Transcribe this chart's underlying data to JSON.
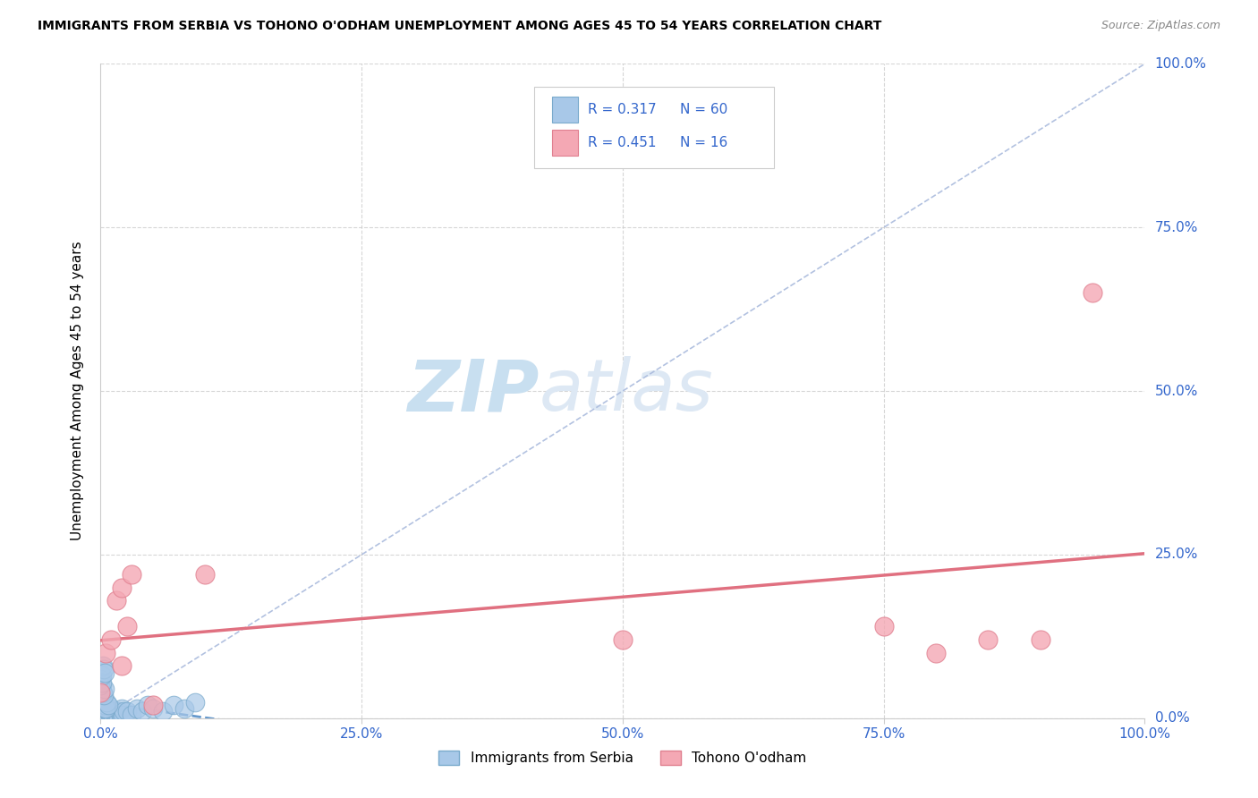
{
  "title": "IMMIGRANTS FROM SERBIA VS TOHONO O'ODHAM UNEMPLOYMENT AMONG AGES 45 TO 54 YEARS CORRELATION CHART",
  "source": "Source: ZipAtlas.com",
  "ylabel": "Unemployment Among Ages 45 to 54 years",
  "xlim": [
    0,
    1
  ],
  "ylim": [
    0,
    1
  ],
  "xticks": [
    0.0,
    0.25,
    0.5,
    0.75,
    1.0
  ],
  "yticks": [
    0.0,
    0.25,
    0.5,
    0.75,
    1.0
  ],
  "xticklabels": [
    "0.0%",
    "25.0%",
    "50.0%",
    "75.0%",
    "100.0%"
  ],
  "yticklabels": [
    "0.0%",
    "25.0%",
    "50.0%",
    "75.0%",
    "100.0%"
  ],
  "serbia_color": "#a8c8e8",
  "tohono_color": "#f4a8b4",
  "serbia_edge_color": "#7aaacc",
  "tohono_edge_color": "#e08090",
  "serbia_R": 0.317,
  "serbia_N": 60,
  "tohono_R": 0.451,
  "tohono_N": 16,
  "legend_label_serbia": "Immigrants from Serbia",
  "legend_label_tohono": "Tohono O'odham",
  "r_color": "#3366cc",
  "n_color": "#3366cc",
  "watermark_zip": "ZIP",
  "watermark_atlas": "atlas",
  "watermark_color": "#c8dff0",
  "grid_color": "#cccccc",
  "diag_color": "#aabbdd",
  "serbia_reg_color": "#6699cc",
  "tohono_reg_color": "#e07080",
  "serbia_x": [
    0.0,
    0.0,
    0.0,
    0.0,
    0.0,
    0.002,
    0.003,
    0.004,
    0.005,
    0.005,
    0.006,
    0.007,
    0.008,
    0.009,
    0.01,
    0.01,
    0.011,
    0.012,
    0.013,
    0.014,
    0.015,
    0.015,
    0.016,
    0.017,
    0.018,
    0.019,
    0.02,
    0.02,
    0.021,
    0.022,
    0.0,
    0.001,
    0.002,
    0.003,
    0.004,
    0.005,
    0.006,
    0.007,
    0.001,
    0.002,
    0.003,
    0.004,
    0.0,
    0.0,
    0.0,
    0.001,
    0.001,
    0.002,
    0.003,
    0.004,
    0.025,
    0.03,
    0.035,
    0.04,
    0.045,
    0.05,
    0.06,
    0.07,
    0.08,
    0.09
  ],
  "serbia_y": [
    0.0,
    0.0,
    0.005,
    0.01,
    0.02,
    0.0,
    0.0,
    0.005,
    0.0,
    0.01,
    0.005,
    0.0,
    0.01,
    0.005,
    0.0,
    0.015,
    0.005,
    0.0,
    0.01,
    0.005,
    0.0,
    0.01,
    0.005,
    0.0,
    0.01,
    0.005,
    0.0,
    0.015,
    0.005,
    0.01,
    0.03,
    0.025,
    0.02,
    0.015,
    0.02,
    0.015,
    0.025,
    0.02,
    0.05,
    0.04,
    0.035,
    0.045,
    0.06,
    0.05,
    0.07,
    0.055,
    0.065,
    0.08,
    0.075,
    0.07,
    0.01,
    0.005,
    0.015,
    0.01,
    0.02,
    0.015,
    0.01,
    0.02,
    0.015,
    0.025
  ],
  "tohono_x": [
    0.0,
    0.005,
    0.01,
    0.015,
    0.02,
    0.025,
    0.02,
    0.03,
    0.05,
    0.1,
    0.5,
    0.75,
    0.8,
    0.85,
    0.9,
    0.95
  ],
  "tohono_y": [
    0.04,
    0.1,
    0.12,
    0.18,
    0.2,
    0.14,
    0.08,
    0.22,
    0.02,
    0.22,
    0.12,
    0.14,
    0.1,
    0.12,
    0.12,
    0.65
  ]
}
